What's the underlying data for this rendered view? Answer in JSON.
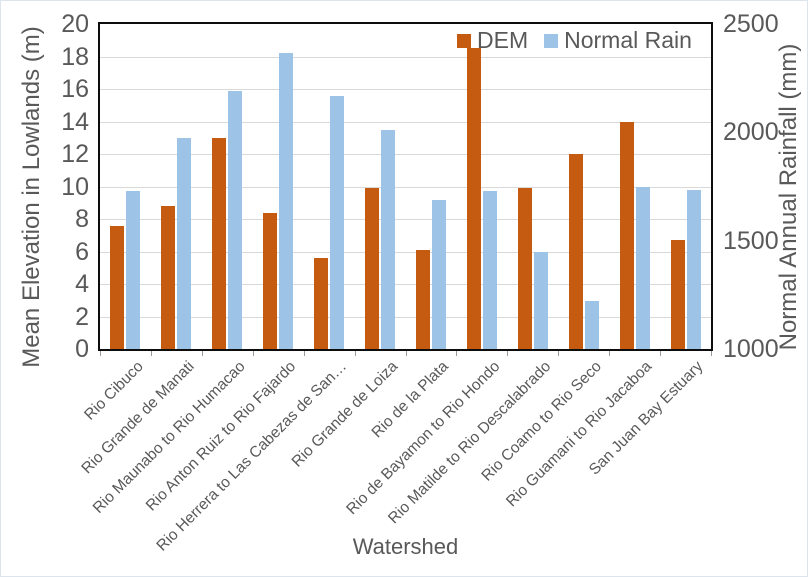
{
  "chart_data": {
    "type": "bar",
    "title": "",
    "categories": [
      "Rio Cibuco",
      "Rio Grande de Manati",
      "Rio Maunabo to Rio Humacao",
      "Rio Anton Ruiz to Rio Fajardo",
      "Rio Herrera to Las Cabezas de San…",
      "Rio Grande de Loiza",
      "Rio de la Plata",
      "Rio de Bayamon to Rio Hondo",
      "Rio Matilde to Rio Descalabrado",
      "Rio Coamo to Rio Seco",
      "Rio Guamani to Rio Jacaboa",
      "San Juan Bay Estuary"
    ],
    "series": [
      {
        "name": "DEM",
        "axis": "left",
        "color": "#C55A11",
        "values": [
          7.6,
          8.8,
          13.0,
          8.4,
          5.6,
          9.9,
          6.1,
          18.5,
          9.9,
          12.0,
          14.0,
          6.7
        ]
      },
      {
        "name": "Normal Rain",
        "axis": "right",
        "color": "#9DC3E6",
        "values": [
          1730,
          1975,
          2190,
          2365,
          2170,
          2010,
          1690,
          1730,
          1450,
          1220,
          1750,
          1735
        ]
      }
    ],
    "x_axis": {
      "title": "Watershed"
    },
    "left_axis": {
      "title": "Mean Elevation in Lowlands (m)",
      "min": 0,
      "max": 20,
      "ticks": [
        0,
        2,
        4,
        6,
        8,
        10,
        12,
        14,
        16,
        18,
        20
      ]
    },
    "right_axis": {
      "title": "Normal Annual Rainfall (mm)",
      "min": 1000,
      "max": 2500,
      "ticks": [
        1000,
        1500,
        2000,
        2500
      ]
    },
    "legend": {
      "position": "top-right-inside",
      "items": [
        "DEM",
        "Normal Rain"
      ]
    },
    "grid": {
      "horizontal": true,
      "color": "#D9D9D9"
    }
  },
  "colors": {
    "text": "#595959",
    "plot_border": "#0d0d0d",
    "gridline": "#D9D9D9",
    "dem": "#C55A11",
    "rain": "#9DC3E6"
  }
}
